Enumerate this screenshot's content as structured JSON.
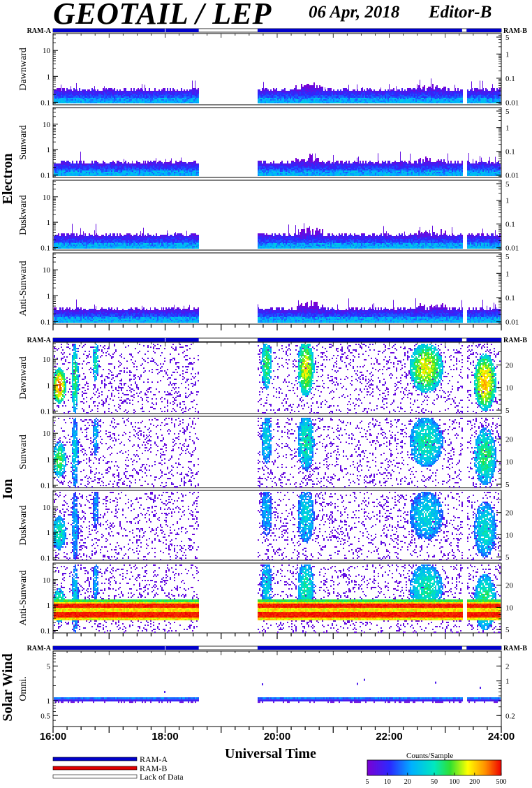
{
  "title": {
    "instrument": "GEOTAIL / LEP",
    "date": "06 Apr, 2018",
    "editor": "Editor-B"
  },
  "legend": {
    "ram_a": "RAM-A",
    "ram_b": "RAM-B",
    "lack_of_data": "Lack of Data",
    "ram_a_color": "#0000cc",
    "ram_b_color": "#e00000"
  },
  "colorbar": {
    "title": "Counts/Sample",
    "ticks": [
      "5",
      "10",
      "20",
      "50",
      "100",
      "200",
      "500"
    ]
  },
  "chart_data": {
    "type": "heatmap",
    "xlabel": "Universal Time",
    "x_ticks": [
      "16:00",
      "18:00",
      "20:00",
      "22:00",
      "24:00"
    ],
    "x_range_hours": [
      16,
      24
    ],
    "data_gaps_hours": [
      [
        18.6,
        19.65
      ],
      [
        23.3,
        23.38
      ]
    ],
    "ram_bar_labels": {
      "left": "RAM-A",
      "right": "RAM-B"
    },
    "groups": [
      {
        "name": "Electron",
        "left_ticks": [
          "0.1",
          "1",
          "10"
        ],
        "right_ticks": [
          "0.01",
          "0.1",
          "1",
          "5"
        ],
        "panels": [
          {
            "label": "Dawnward"
          },
          {
            "label": "Sunward"
          },
          {
            "label": "Duskward"
          },
          {
            "label": "Anti-Sunward"
          }
        ]
      },
      {
        "name": "Ion",
        "left_ticks": [
          "0.1",
          "1",
          "10"
        ],
        "right_ticks": [
          "5",
          "10",
          "20"
        ],
        "panels": [
          {
            "label": "Dawnward"
          },
          {
            "label": "Sunward"
          },
          {
            "label": "Duskward"
          },
          {
            "label": "Anti-Sunward"
          }
        ]
      },
      {
        "name": "Solar Wind",
        "left_ticks": [
          "0.5",
          "1",
          "5"
        ],
        "right_ticks": [
          "0.2",
          "1",
          "2"
        ],
        "panels": [
          {
            "label": "Omni."
          }
        ]
      }
    ]
  }
}
